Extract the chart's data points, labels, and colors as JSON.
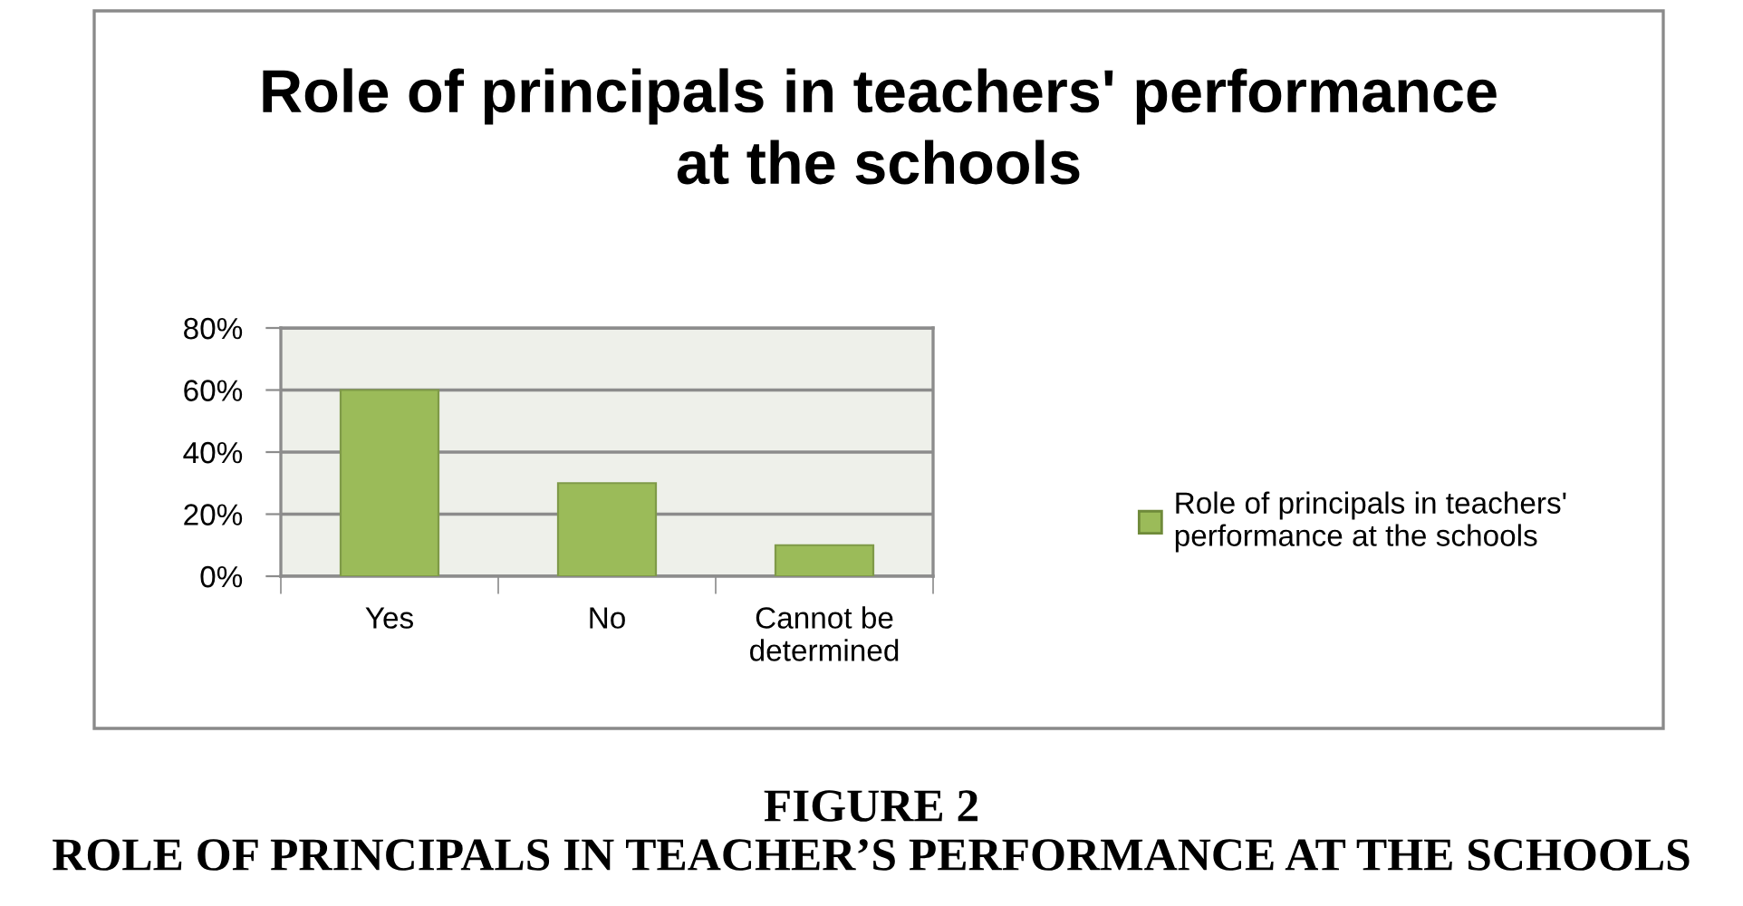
{
  "chart_data": {
    "type": "bar",
    "title": "Role of principals in teachers' performance at the schools",
    "categories": [
      "Yes",
      "No",
      "Cannot be determined"
    ],
    "series": [
      {
        "name": "Role of principals in teachers' performance at the schools",
        "color": "#9bbb59",
        "values": [
          60,
          30,
          10
        ]
      }
    ],
    "ylim": [
      0,
      80
    ],
    "yticks": [
      {
        "value": 0,
        "label": "0%"
      },
      {
        "value": 20,
        "label": "20%"
      },
      {
        "value": 40,
        "label": "40%"
      },
      {
        "value": 60,
        "label": "60%"
      },
      {
        "value": 80,
        "label": "80%"
      }
    ],
    "grid": "y",
    "legend": "right",
    "annotations": [
      "FIGURE 2",
      "ROLE OF PRINCIPALS IN TEACHER’S PERFORMANCE AT THE SCHOOLS"
    ]
  }
}
